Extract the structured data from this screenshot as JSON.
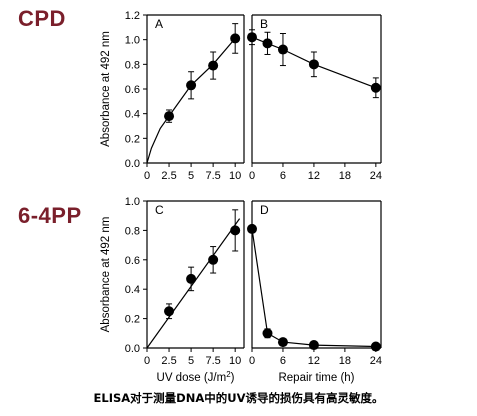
{
  "row_labels": {
    "top": "CPD",
    "bottom": "6-4PP"
  },
  "caption": "ELISA对于测量DNA中的UV诱导的损伤具有高灵敏度。",
  "chart_data": [
    {
      "type": "line",
      "panel": "A",
      "row": "CPD",
      "ylabel": "Absorbance at 492 nm",
      "xlabel": "",
      "xlim": [
        0,
        11
      ],
      "ylim": [
        0,
        1.2
      ],
      "xticks": [
        0,
        2.5,
        5,
        7.5,
        10
      ],
      "yticks": [
        0,
        0.2,
        0.4,
        0.6,
        0.8,
        1.0,
        1.2
      ],
      "points": [
        {
          "x": 2.5,
          "y": 0.38,
          "err": 0.05
        },
        {
          "x": 5,
          "y": 0.63,
          "err": 0.11
        },
        {
          "x": 7.5,
          "y": 0.79,
          "err": 0.11
        },
        {
          "x": 10,
          "y": 1.01,
          "err": 0.12
        }
      ],
      "fit": [
        [
          0,
          0
        ],
        [
          0.5,
          0.12
        ],
        [
          1.5,
          0.28
        ],
        [
          2.5,
          0.38
        ],
        [
          5,
          0.63
        ],
        [
          7.5,
          0.8
        ],
        [
          10,
          1.01
        ]
      ]
    },
    {
      "type": "line",
      "panel": "B",
      "row": "CPD",
      "xlabel": "",
      "xlim": [
        0,
        25
      ],
      "ylim": [
        0,
        1.2
      ],
      "xticks": [
        0,
        6,
        12,
        18,
        24
      ],
      "points": [
        {
          "x": 0,
          "y": 1.02,
          "err": 0.06
        },
        {
          "x": 3,
          "y": 0.97,
          "err": 0.09
        },
        {
          "x": 6,
          "y": 0.92,
          "err": 0.13
        },
        {
          "x": 12,
          "y": 0.8,
          "err": 0.1
        },
        {
          "x": 24,
          "y": 0.61,
          "err": 0.08
        }
      ],
      "fit": [
        [
          0,
          1.02
        ],
        [
          3,
          0.97
        ],
        [
          6,
          0.92
        ],
        [
          12,
          0.8
        ],
        [
          24,
          0.61
        ]
      ]
    },
    {
      "type": "line",
      "panel": "C",
      "row": "6-4PP",
      "ylabel": "Absorbance at 492 nm",
      "xlabel": "UV dose (J/m2)",
      "xlim": [
        0,
        11
      ],
      "ylim": [
        0,
        1.0
      ],
      "xticks": [
        0,
        2.5,
        5,
        7.5,
        10
      ],
      "yticks": [
        0,
        0.2,
        0.4,
        0.6,
        0.8,
        1.0
      ],
      "points": [
        {
          "x": 2.5,
          "y": 0.25,
          "err": 0.05
        },
        {
          "x": 5,
          "y": 0.47,
          "err": 0.08
        },
        {
          "x": 7.5,
          "y": 0.6,
          "err": 0.09
        },
        {
          "x": 10,
          "y": 0.8,
          "err": 0.14
        }
      ],
      "fit": [
        [
          0,
          0
        ],
        [
          10.5,
          0.88
        ]
      ]
    },
    {
      "type": "line",
      "panel": "D",
      "row": "6-4PP",
      "xlabel": "Repair time (h)",
      "xlim": [
        0,
        25
      ],
      "ylim": [
        0,
        1.0
      ],
      "xticks": [
        0,
        6,
        12,
        18,
        24
      ],
      "points": [
        {
          "x": 0,
          "y": 0.81,
          "err": 0.0
        },
        {
          "x": 3,
          "y": 0.1,
          "err": 0.03
        },
        {
          "x": 6,
          "y": 0.04,
          "err": 0.02
        },
        {
          "x": 12,
          "y": 0.02,
          "err": 0.0
        },
        {
          "x": 24,
          "y": 0.01,
          "err": 0.0
        }
      ],
      "fit": [
        [
          0,
          0.81
        ],
        [
          3,
          0.1
        ],
        [
          6,
          0.04
        ],
        [
          12,
          0.02
        ],
        [
          24,
          0.01
        ]
      ]
    }
  ]
}
